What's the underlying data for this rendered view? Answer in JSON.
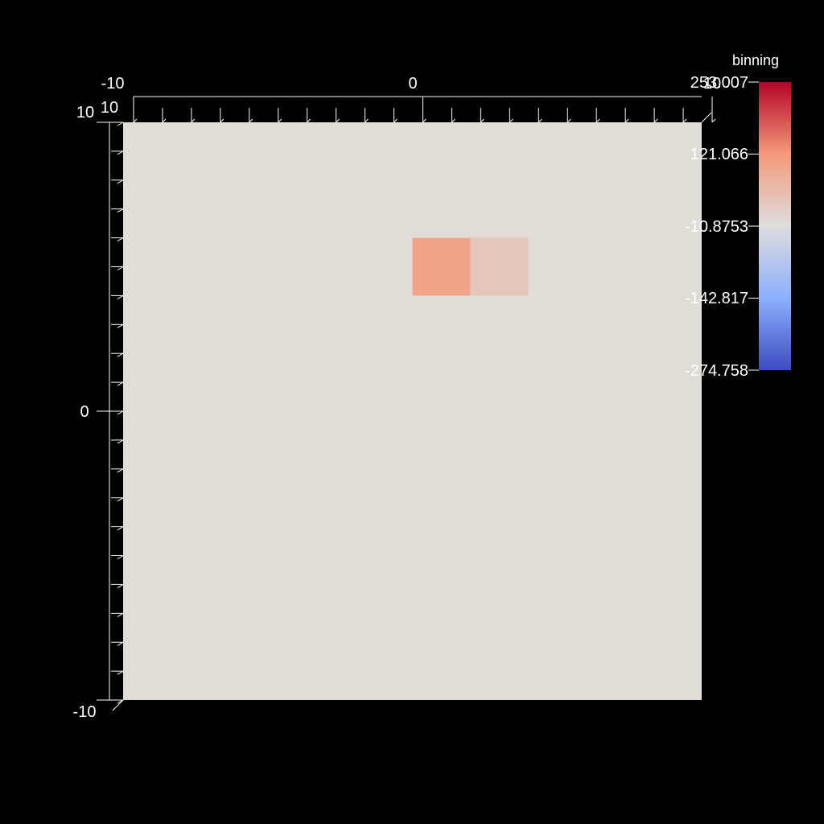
{
  "chart_data": {
    "type": "heatmap",
    "scalar_name": "binning",
    "x_range": [
      -10,
      10
    ],
    "y_range": [
      -10,
      10
    ],
    "z_range": [
      -10,
      10
    ],
    "background_value": 0,
    "cells": [
      {
        "x0": 0,
        "x1": 2,
        "y0": 4,
        "y1": 6,
        "value": 100
      },
      {
        "x0": 2,
        "x1": 4,
        "y0": 4,
        "y1": 6,
        "value": 35
      }
    ],
    "axes": {
      "top_labels": [
        "-10",
        "0",
        "10"
      ],
      "top_label_values": [
        -10,
        0,
        10
      ],
      "top_end_label": "10",
      "left_labels": [
        "10",
        "0",
        "-10"
      ],
      "left_label_values": [
        10,
        0,
        -10
      ],
      "left_inner_label": "10",
      "tick_step": 1
    },
    "colorbar": {
      "title": "binning",
      "range": [
        -274.758,
        253.007
      ],
      "tick_labels": [
        "253.007",
        "121.066",
        "-10.8753",
        "-142.817",
        "-274.758"
      ],
      "tick_values": [
        253.007,
        121.066,
        -10.8753,
        -142.817,
        -274.758
      ],
      "colormap": "cool to warm",
      "colormap_stops": [
        {
          "t": 0.0,
          "color": "#3b4cc0"
        },
        {
          "t": 0.25,
          "color": "#8db0fe"
        },
        {
          "t": 0.5,
          "color": "#dddddd"
        },
        {
          "t": 0.75,
          "color": "#f49a7b"
        },
        {
          "t": 1.0,
          "color": "#b40426"
        }
      ]
    }
  }
}
